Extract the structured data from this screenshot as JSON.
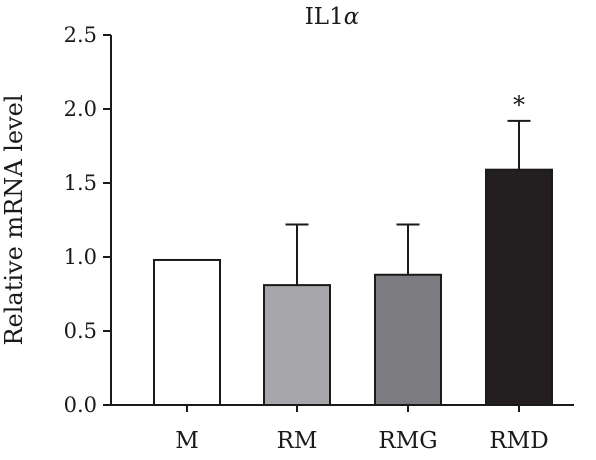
{
  "chart_data": {
    "type": "bar",
    "title": "IL1",
    "title_symbol": "α",
    "ylabel": "Relative mRNA level",
    "xlabel": "",
    "categories": [
      "M",
      "RM",
      "RMG",
      "RMD"
    ],
    "values": [
      0.98,
      0.81,
      0.88,
      1.59
    ],
    "error_upper": [
      0.0,
      0.41,
      0.34,
      0.33
    ],
    "significance": [
      "",
      "",
      "",
      "*"
    ],
    "bar_colors": [
      "#ffffff",
      "#a7a7ab",
      "#7c7c80",
      "#231f20"
    ],
    "ylim": [
      0,
      2.5
    ],
    "yticks": [
      0.0,
      0.5,
      1.0,
      1.5,
      2.0,
      2.5
    ],
    "ytick_labels": [
      "0.0",
      "0.5",
      "1.0",
      "1.5",
      "2.0",
      "2.5"
    ],
    "grid": false,
    "legend": "none"
  }
}
